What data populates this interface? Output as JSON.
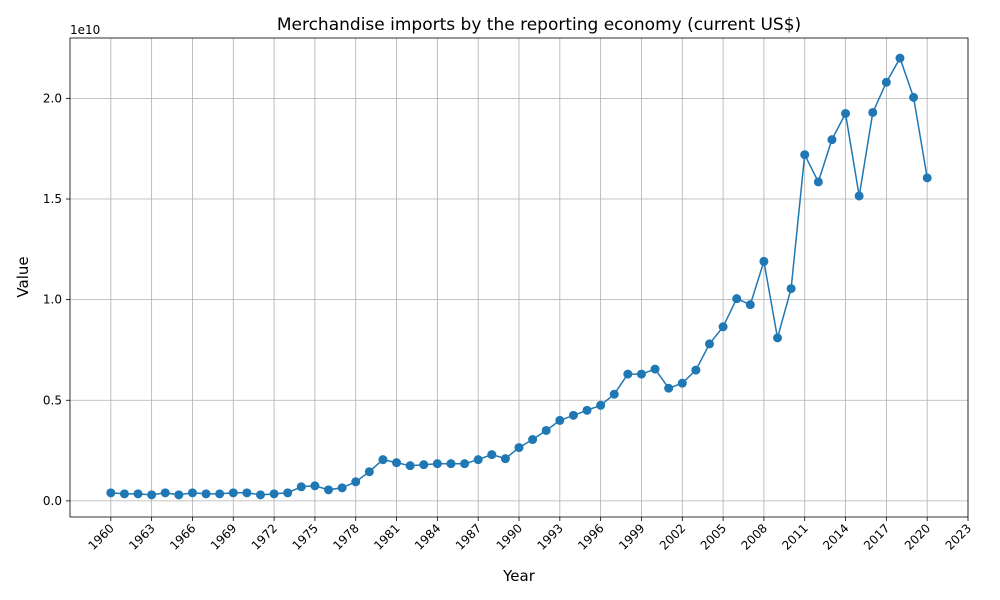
{
  "chart_data": {
    "type": "line",
    "title": "Merchandise imports by the reporting economy (current US$)",
    "xlabel": "Year",
    "ylabel": "Value",
    "y_offset_label": "1e10",
    "xlim": [
      1957,
      2023
    ],
    "ylim": [
      -0.08,
      2.3
    ],
    "x_ticks": [
      1960,
      1963,
      1966,
      1969,
      1972,
      1975,
      1978,
      1981,
      1984,
      1987,
      1990,
      1993,
      1996,
      1999,
      2002,
      2005,
      2008,
      2011,
      2014,
      2017,
      2020,
      2023
    ],
    "y_ticks": [
      0.0,
      0.5,
      1.0,
      1.5,
      2.0
    ],
    "y_tick_labels": [
      "0.0",
      "0.5",
      "1.0",
      "1.5",
      "2.0"
    ],
    "grid": true,
    "series_color": "#1f77b4",
    "series": [
      {
        "x": [
          1960,
          1961,
          1962,
          1963,
          1964,
          1965,
          1966,
          1967,
          1968,
          1969,
          1970,
          1971,
          1972,
          1973,
          1974,
          1975,
          1976,
          1977,
          1978,
          1979,
          1980,
          1981,
          1982,
          1983,
          1984,
          1985,
          1986,
          1987,
          1988,
          1989,
          1990,
          1991,
          1992,
          1993,
          1994,
          1995,
          1996,
          1997,
          1998,
          1999,
          2000,
          2001,
          2002,
          2003,
          2004,
          2005,
          2006,
          2007,
          2008,
          2009,
          2010,
          2011,
          2012,
          2013,
          2014,
          2015,
          2016,
          2017,
          2018,
          2019,
          2020
        ],
        "values": [
          0.04,
          0.035,
          0.035,
          0.03,
          0.04,
          0.03,
          0.04,
          0.035,
          0.035,
          0.04,
          0.04,
          0.03,
          0.035,
          0.04,
          0.07,
          0.075,
          0.055,
          0.065,
          0.095,
          0.145,
          0.205,
          0.19,
          0.175,
          0.18,
          0.185,
          0.185,
          0.185,
          0.205,
          0.23,
          0.21,
          0.265,
          0.305,
          0.35,
          0.4,
          0.425,
          0.45,
          0.475,
          0.53,
          0.63,
          0.63,
          0.655,
          0.56,
          0.585,
          0.65,
          0.78,
          0.865,
          1.005,
          0.975,
          1.19,
          0.81,
          1.055,
          1.72,
          1.585,
          1.795,
          1.925,
          1.515,
          1.93,
          2.08,
          2.2,
          2.005,
          1.605
        ]
      }
    ]
  }
}
